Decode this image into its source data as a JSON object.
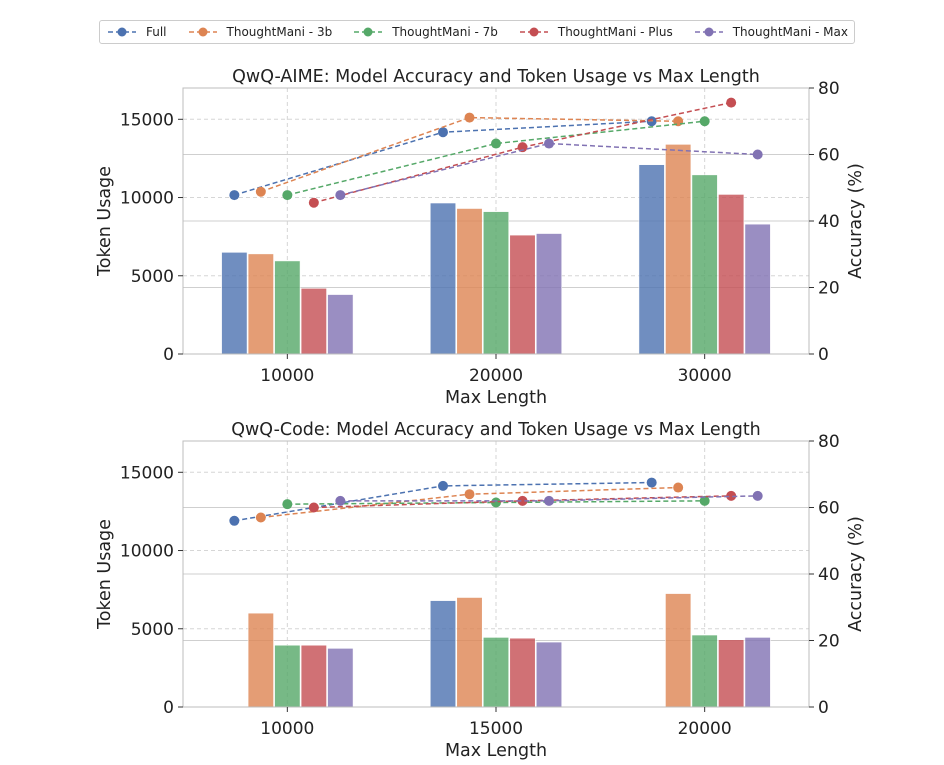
{
  "legend": {
    "items": [
      {
        "label": "Full",
        "color": "#4c72b0"
      },
      {
        "label": "ThoughtMani - 3b",
        "color": "#dd8452"
      },
      {
        "label": "ThoughtMani - 7b",
        "color": "#55a868"
      },
      {
        "label": "ThoughtMani - Plus",
        "color": "#c44e52"
      },
      {
        "label": "ThoughtMani - Max",
        "color": "#8172b3"
      }
    ]
  },
  "chart_data": [
    {
      "type": "bar+line",
      "title": "QwQ-AIME: Model Accuracy and Token Usage vs Max Length",
      "xlabel": "Max Length",
      "ylabel": "Token Usage",
      "y2label": "Accuracy (%)",
      "categories": [
        "10000",
        "20000",
        "30000"
      ],
      "ylim": [
        0,
        17000
      ],
      "yticks": [
        0,
        5000,
        10000,
        15000
      ],
      "y2lim": [
        0,
        80
      ],
      "y2ticks": [
        0,
        20,
        40,
        60,
        80
      ],
      "bar_series": [
        {
          "name": "Full",
          "values": [
            6500,
            9650,
            12100
          ]
        },
        {
          "name": "ThoughtMani - 3b",
          "values": [
            6400,
            9300,
            13400
          ]
        },
        {
          "name": "ThoughtMani - 7b",
          "values": [
            5950,
            9100,
            11450
          ]
        },
        {
          "name": "ThoughtMani - Plus",
          "values": [
            4200,
            7600,
            10200
          ]
        },
        {
          "name": "ThoughtMani - Max",
          "values": [
            3800,
            7700,
            8300
          ]
        }
      ],
      "line_series": [
        {
          "name": "Full",
          "values": [
            47.8,
            66.7,
            70.0
          ]
        },
        {
          "name": "ThoughtMani - 3b",
          "values": [
            48.8,
            71.1,
            70.0
          ]
        },
        {
          "name": "ThoughtMani - 7b",
          "values": [
            47.8,
            63.3,
            70.0
          ]
        },
        {
          "name": "ThoughtMani - Plus",
          "values": [
            45.5,
            62.2,
            75.6
          ]
        },
        {
          "name": "ThoughtMani - Max",
          "values": [
            47.8,
            63.3,
            60.0
          ]
        }
      ]
    },
    {
      "type": "bar+line",
      "title": "QwQ-Code: Model Accuracy and Token Usage vs Max Length",
      "xlabel": "Max Length",
      "ylabel": "Token Usage",
      "y2label": "Accuracy (%)",
      "categories": [
        "10000",
        "15000",
        "20000"
      ],
      "ylim": [
        0,
        17000
      ],
      "yticks": [
        0,
        5000,
        10000,
        15000
      ],
      "y2lim": [
        0,
        80
      ],
      "y2ticks": [
        0,
        20,
        40,
        60,
        80
      ],
      "bar_series": [
        {
          "name": "Full",
          "values": [
            0,
            6800,
            0
          ]
        },
        {
          "name": "ThoughtMani - 3b",
          "values": [
            6000,
            7000,
            7250
          ]
        },
        {
          "name": "ThoughtMani - 7b",
          "values": [
            3950,
            4450,
            4600
          ]
        },
        {
          "name": "ThoughtMani - Plus",
          "values": [
            3950,
            4400,
            4300
          ]
        },
        {
          "name": "ThoughtMani - Max",
          "values": [
            3750,
            4150,
            4450
          ]
        }
      ],
      "line_series": [
        {
          "name": "Full",
          "values": [
            56.0,
            66.5,
            67.5
          ]
        },
        {
          "name": "ThoughtMani - 3b",
          "values": [
            57.0,
            64.0,
            66.0
          ]
        },
        {
          "name": "ThoughtMani - 7b",
          "values": [
            61.0,
            61.5,
            62.0
          ]
        },
        {
          "name": "ThoughtMani - Plus",
          "values": [
            60.0,
            62.0,
            63.5
          ]
        },
        {
          "name": "ThoughtMani - Max",
          "values": [
            62.0,
            62.0,
            63.5
          ]
        }
      ]
    }
  ]
}
